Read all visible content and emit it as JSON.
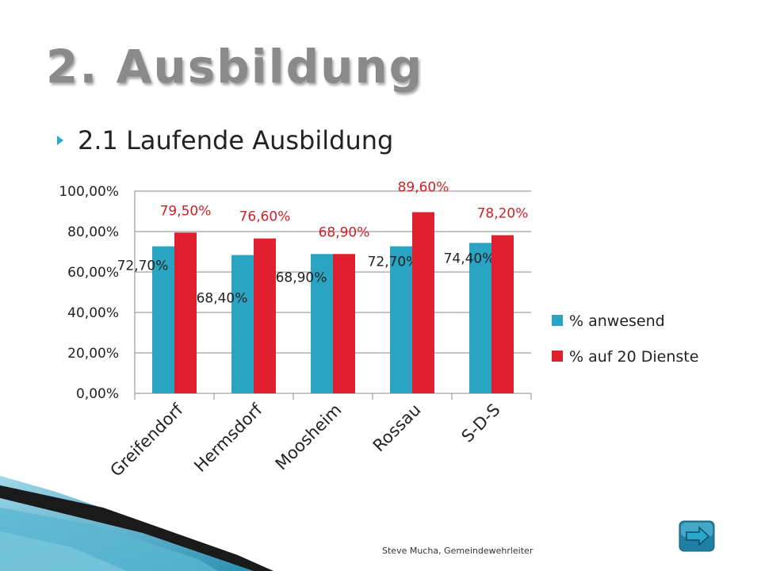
{
  "slide": {
    "title": "2. Ausbildung",
    "bullet": "2.1 Laufende Ausbildung",
    "footer": "Steve Mucha, Gemeindewehrleiter"
  },
  "colors": {
    "series_anwesend": "#2aa4c2",
    "series_dienste": "#e0202e",
    "label_dienste": "#d0202a",
    "title": "#8a8a8a",
    "bullet": "#2aa7c9",
    "nav": "#2aa7c9"
  },
  "nav": {
    "icon": "right-arrow-icon"
  },
  "chart_data": {
    "type": "bar",
    "categories": [
      "Greifendorf",
      "Hermsdorf",
      "Moosheim",
      "Rossau",
      "S-D-S"
    ],
    "series": [
      {
        "name": "% anwesend",
        "values": [
          72.7,
          68.4,
          68.9,
          72.7,
          74.4
        ],
        "labels": [
          "72,70%",
          "68,40%",
          "68,90%",
          "72,70%",
          "74,40%"
        ]
      },
      {
        "name": "% auf 20 Dienste",
        "values": [
          79.5,
          76.6,
          68.9,
          89.6,
          78.2
        ],
        "labels": [
          "79,50%",
          "76,60%",
          "68,90%",
          "89,60%",
          "78,20%"
        ]
      }
    ],
    "ylim": [
      0,
      100
    ],
    "yticks": [
      "0,00%",
      "20,00%",
      "40,00%",
      "60,00%",
      "80,00%",
      "100,00%"
    ],
    "grid": true,
    "legend": "right"
  }
}
